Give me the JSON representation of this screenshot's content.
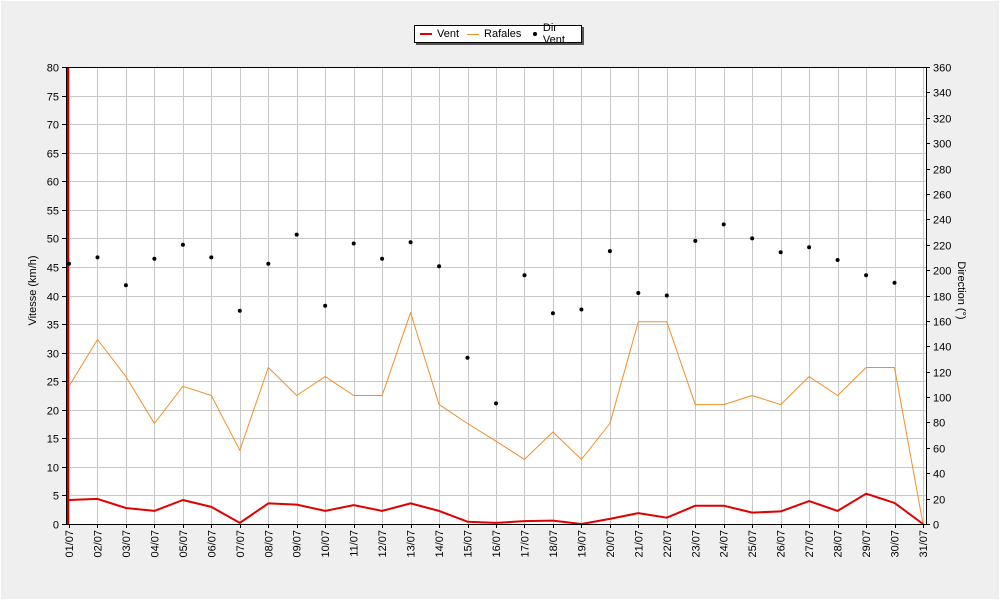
{
  "chart_data": {
    "type": "line",
    "categories": [
      "01/07",
      "02/07",
      "03/07",
      "04/07",
      "05/07",
      "06/07",
      "07/07",
      "08/07",
      "09/07",
      "10/07",
      "11/07",
      "12/07",
      "13/07",
      "14/07",
      "15/07",
      "16/07",
      "17/07",
      "18/07",
      "19/07",
      "20/07",
      "21/07",
      "22/07",
      "23/07",
      "24/07",
      "25/07",
      "26/07",
      "27/07",
      "28/07",
      "29/07",
      "30/07",
      "31/07"
    ],
    "ylabel": "Vitesse (km/h)",
    "y2label": "Direction (°)",
    "ylim": [
      0,
      80
    ],
    "y2lim": [
      0,
      360
    ],
    "yticks": [
      0,
      5,
      10,
      15,
      20,
      25,
      30,
      35,
      40,
      45,
      50,
      55,
      60,
      65,
      70,
      75,
      80
    ],
    "y2ticks": [
      0,
      20,
      40,
      60,
      80,
      100,
      120,
      140,
      160,
      180,
      200,
      220,
      240,
      260,
      280,
      300,
      320,
      340,
      360
    ],
    "grid": true,
    "legend_position": "top-center",
    "series": [
      {
        "name": "Vent",
        "color": "#e00000",
        "kind": "line",
        "axis": "left",
        "values": [
          4.2,
          4.4,
          2.8,
          2.3,
          4.2,
          3.0,
          0.2,
          3.6,
          3.4,
          2.3,
          3.3,
          2.3,
          3.6,
          2.3,
          0.4,
          0.2,
          0.5,
          0.6,
          0.0,
          0.9,
          1.9,
          1.1,
          3.2,
          3.2,
          2.0,
          2.2,
          4.0,
          2.3,
          5.3,
          3.7,
          0.0
        ]
      },
      {
        "name": "Rafales",
        "color": "#f0902a",
        "kind": "line",
        "axis": "left",
        "values": [
          24.1,
          32.3,
          25.8,
          17.6,
          24.1,
          22.5,
          12.9,
          27.4,
          22.5,
          25.8,
          22.5,
          22.5,
          37.0,
          20.9,
          17.6,
          14.5,
          11.3,
          16.1,
          11.3,
          17.6,
          35.4,
          35.4,
          20.9,
          20.9,
          22.5,
          20.9,
          25.8,
          22.5,
          27.4,
          27.4,
          0.0
        ]
      },
      {
        "name": "Dir Vent",
        "color": "#000000",
        "kind": "scatter",
        "axis": "right",
        "values": [
          205,
          210,
          188,
          209,
          220,
          210,
          168,
          205,
          228,
          172,
          221,
          209,
          222,
          203,
          131,
          95,
          196,
          166,
          169,
          215,
          182,
          180,
          223,
          236,
          225,
          214,
          218,
          208,
          196,
          190,
          null
        ]
      }
    ]
  }
}
